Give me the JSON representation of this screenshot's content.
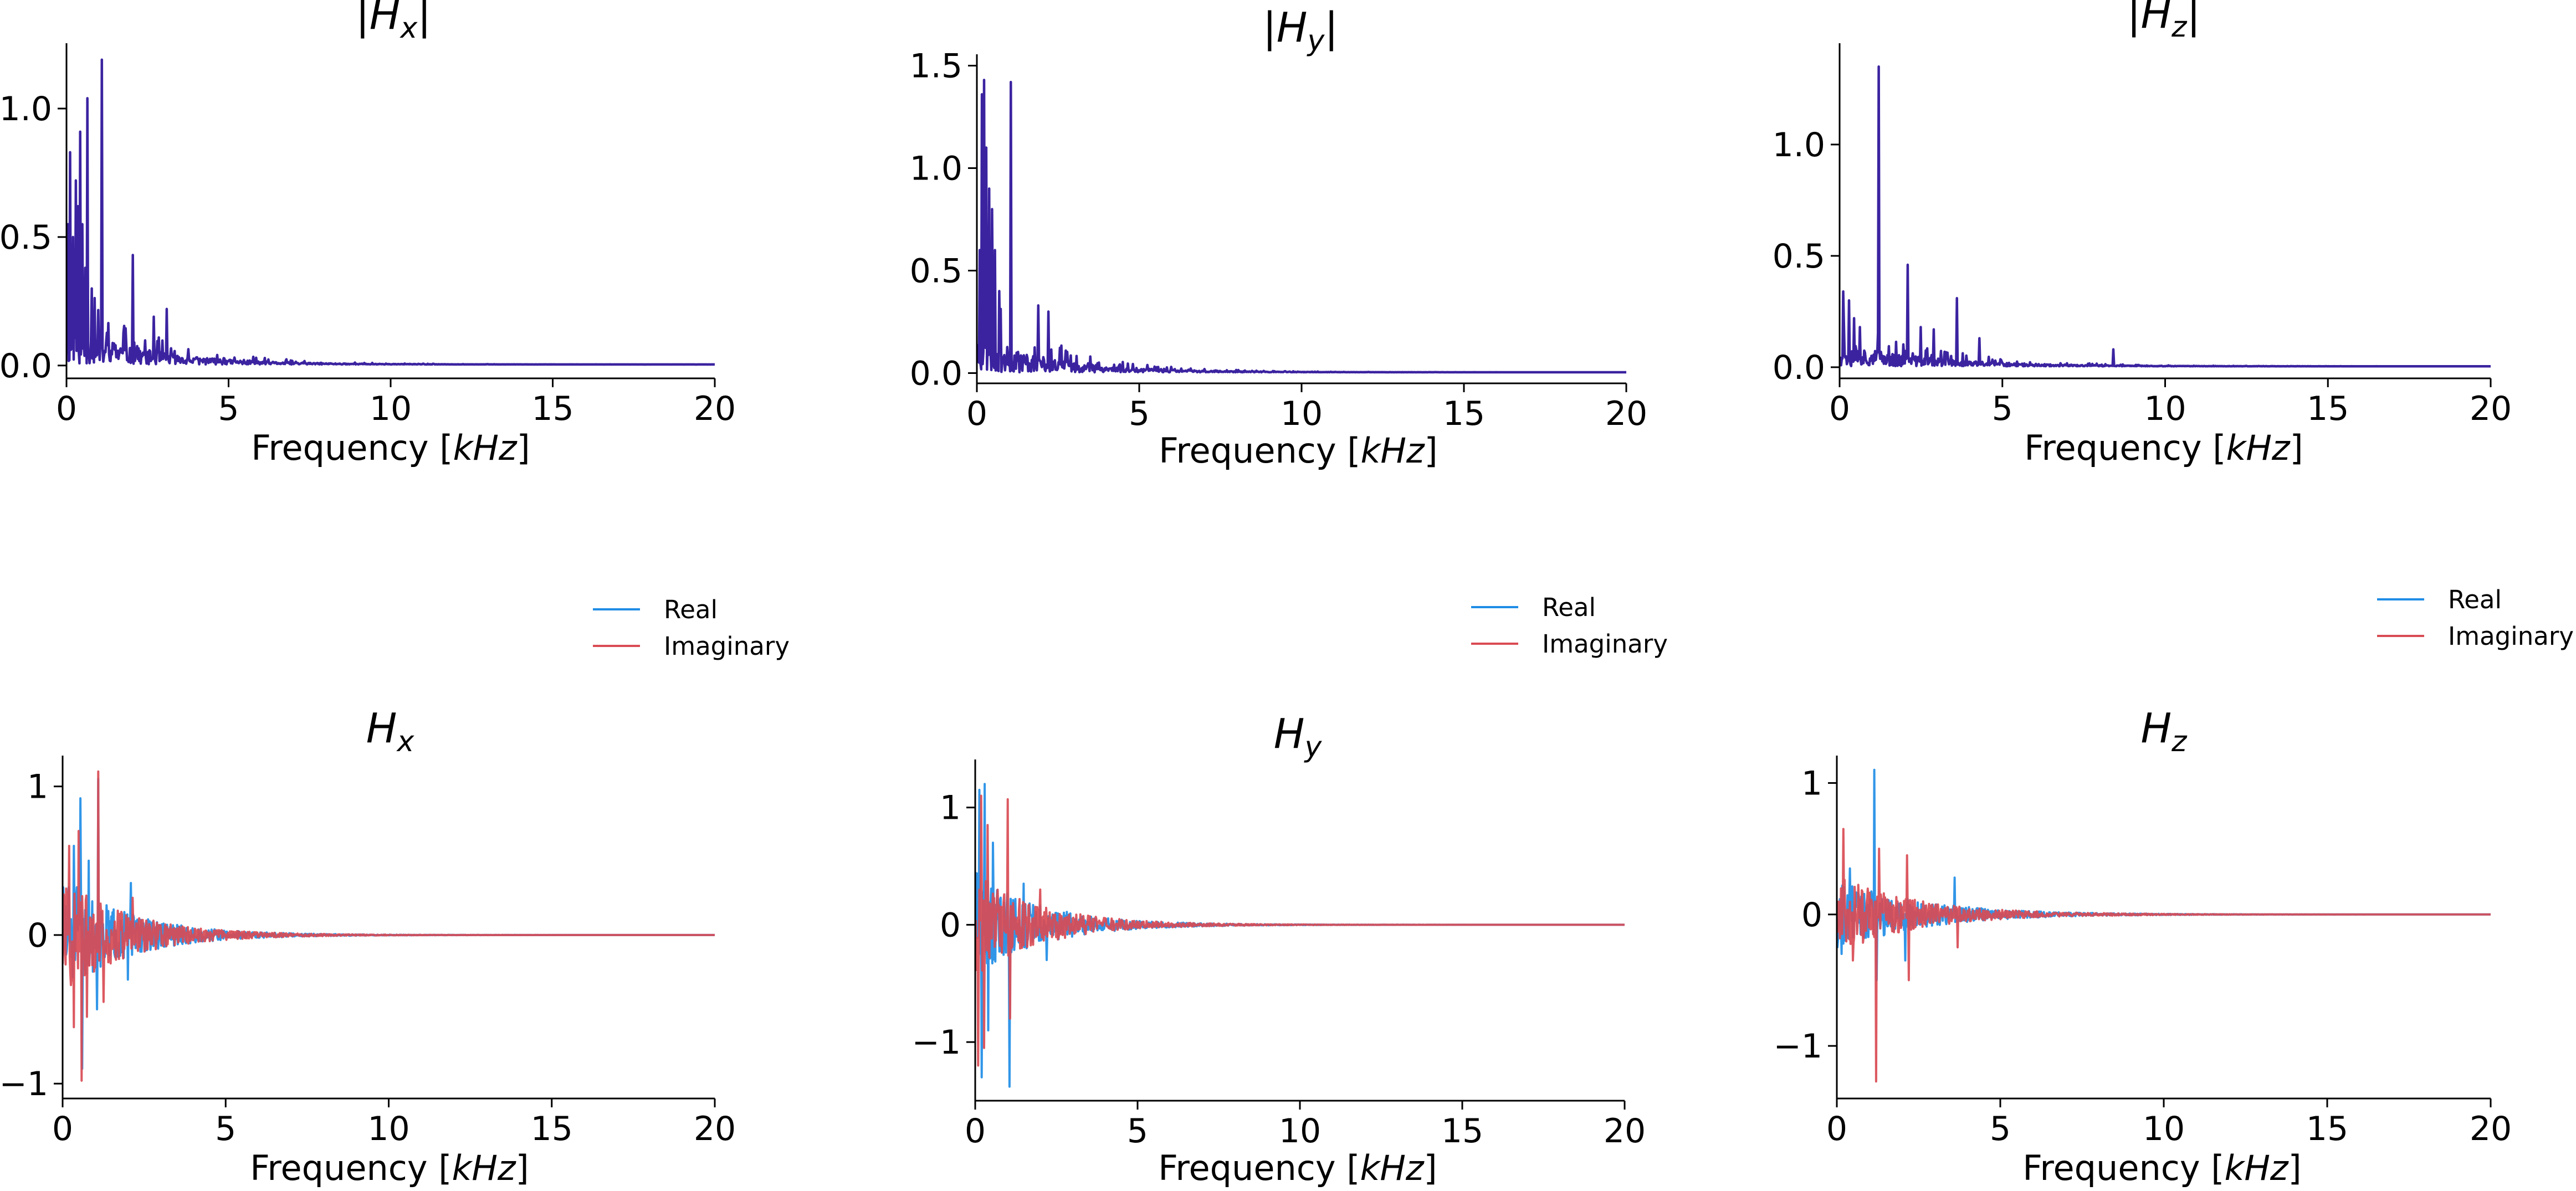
{
  "figure": {
    "colors": {
      "magnitude": "#3b23a0",
      "real": "#1f8de6",
      "imaginary": "#d94b54",
      "axis": "#000000"
    }
  },
  "chart_data": [
    {
      "id": "mag-x",
      "type": "line",
      "title": "|Hx|",
      "title_parts": {
        "bar": "|",
        "base": "H",
        "sub": "x"
      },
      "xlabel": "Frequency [kHz]",
      "xlabel_parts": {
        "prefix": "Frequency [",
        "unit": "kHz",
        "suffix": "]"
      },
      "ylabel": "",
      "xlim": [
        0,
        20
      ],
      "ylim": [
        -0.05,
        1.25
      ],
      "xticks": [
        0,
        5,
        10,
        15,
        20
      ],
      "xtick_labels": [
        "0",
        "5",
        "10",
        "15",
        "20"
      ],
      "yticks": [
        0.0,
        0.5,
        1.0
      ],
      "ytick_labels": [
        "0.0",
        "0.5",
        "1.0"
      ],
      "legend": null,
      "series": [
        {
          "name": "|Hx|",
          "color_key": "magnitude",
          "x_range": [
            0,
            20
          ],
          "n_points": 900,
          "seed": 11,
          "decay_khz": 2.3,
          "noise_amp": 0.24,
          "floor": 0.004,
          "signed": false,
          "peaks": [
            [
              0.05,
              0.55
            ],
            [
              0.12,
              0.83
            ],
            [
              0.2,
              0.5
            ],
            [
              0.28,
              0.72
            ],
            [
              0.36,
              0.62
            ],
            [
              0.42,
              0.91
            ],
            [
              0.5,
              0.55
            ],
            [
              0.58,
              0.38
            ],
            [
              0.65,
              1.04
            ],
            [
              0.78,
              0.3
            ],
            [
              1.1,
              1.19
            ],
            [
              2.05,
              0.43
            ],
            [
              2.7,
              0.19
            ],
            [
              3.1,
              0.22
            ]
          ]
        }
      ]
    },
    {
      "id": "mag-y",
      "type": "line",
      "title": "|Hy|",
      "title_parts": {
        "bar": "|",
        "base": "H",
        "sub": "y"
      },
      "xlabel": "Frequency [kHz]",
      "xlabel_parts": {
        "prefix": "Frequency [",
        "unit": "kHz",
        "suffix": "]"
      },
      "ylabel": "",
      "xlim": [
        0,
        20
      ],
      "ylim": [
        -0.05,
        1.55
      ],
      "xticks": [
        0,
        5,
        10,
        15,
        20
      ],
      "xtick_labels": [
        "0",
        "5",
        "10",
        "15",
        "20"
      ],
      "yticks": [
        0.0,
        0.5,
        1.0,
        1.5
      ],
      "ytick_labels": [
        "0.0",
        "0.5",
        "1.0",
        "1.5"
      ],
      "legend": null,
      "series": [
        {
          "name": "|Hy|",
          "color_key": "magnitude",
          "x_range": [
            0,
            20
          ],
          "n_points": 900,
          "seed": 23,
          "decay_khz": 2.2,
          "noise_amp": 0.27,
          "floor": 0.004,
          "signed": false,
          "peaks": [
            [
              0.08,
              0.6
            ],
            [
              0.15,
              1.36
            ],
            [
              0.22,
              1.43
            ],
            [
              0.3,
              1.1
            ],
            [
              0.38,
              0.9
            ],
            [
              0.46,
              0.8
            ],
            [
              0.55,
              0.6
            ],
            [
              0.7,
              0.4
            ],
            [
              1.05,
              1.42
            ],
            [
              1.9,
              0.33
            ],
            [
              2.2,
              0.3
            ]
          ]
        }
      ]
    },
    {
      "id": "mag-z",
      "type": "line",
      "title": "|Hz|",
      "title_parts": {
        "bar": "|",
        "base": "H",
        "sub": "z"
      },
      "xlabel": "Frequency [kHz]",
      "xlabel_parts": {
        "prefix": "Frequency [",
        "unit": "kHz",
        "suffix": "]"
      },
      "ylabel": "",
      "xlim": [
        0,
        20
      ],
      "ylim": [
        -0.05,
        1.45
      ],
      "xticks": [
        0,
        5,
        10,
        15,
        20
      ],
      "xtick_labels": [
        "0",
        "5",
        "10",
        "15",
        "20"
      ],
      "yticks": [
        0.0,
        0.5,
        1.0
      ],
      "ytick_labels": [
        "0.0",
        "0.5",
        "1.0"
      ],
      "legend": null,
      "series": [
        {
          "name": "|Hz|",
          "color_key": "magnitude",
          "x_range": [
            0,
            20
          ],
          "n_points": 900,
          "seed": 37,
          "decay_khz": 2.6,
          "noise_amp": 0.16,
          "floor": 0.004,
          "signed": false,
          "peaks": [
            [
              0.12,
              0.34
            ],
            [
              0.28,
              0.3
            ],
            [
              0.45,
              0.22
            ],
            [
              0.62,
              0.18
            ],
            [
              1.2,
              1.35
            ],
            [
              2.1,
              0.46
            ],
            [
              2.5,
              0.18
            ],
            [
              2.9,
              0.17
            ],
            [
              3.6,
              0.31
            ],
            [
              4.3,
              0.13
            ],
            [
              8.4,
              0.08
            ]
          ]
        }
      ]
    },
    {
      "id": "cplx-x",
      "type": "line",
      "title": "Hx",
      "title_parts": {
        "bar": "",
        "base": "H",
        "sub": "x"
      },
      "xlabel": "Frequency [kHz]",
      "xlabel_parts": {
        "prefix": "Frequency [",
        "unit": "kHz",
        "suffix": "]"
      },
      "ylabel": "",
      "xlim": [
        0,
        20
      ],
      "ylim": [
        -1.1,
        1.2
      ],
      "xticks": [
        0,
        5,
        10,
        15,
        20
      ],
      "xtick_labels": [
        "0",
        "5",
        "10",
        "15",
        "20"
      ],
      "yticks": [
        -1,
        0,
        1
      ],
      "ytick_labels": [
        "−1",
        "0",
        "1"
      ],
      "legend": {
        "placement": "upper-right",
        "entries": [
          "Real",
          "Imaginary"
        ]
      },
      "series": [
        {
          "name": "Real",
          "color_key": "real",
          "x_range": [
            0,
            20
          ],
          "n_points": 1100,
          "seed": 51,
          "decay_khz": 2.0,
          "noise_amp": 0.4,
          "floor": 0.0,
          "signed": true,
          "peaks": [
            [
              0.35,
              0.6
            ],
            [
              0.55,
              0.92
            ],
            [
              0.6,
              -0.9
            ],
            [
              0.8,
              0.5
            ],
            [
              1.05,
              -0.5
            ],
            [
              1.1,
              1.05
            ],
            [
              2.0,
              -0.3
            ],
            [
              2.1,
              0.35
            ]
          ]
        },
        {
          "name": "Imaginary",
          "color_key": "imaginary",
          "x_range": [
            0,
            20
          ],
          "n_points": 1100,
          "seed": 57,
          "decay_khz": 2.0,
          "noise_amp": 0.4,
          "floor": 0.0,
          "signed": true,
          "peaks": [
            [
              0.2,
              0.6
            ],
            [
              0.35,
              -0.62
            ],
            [
              0.5,
              0.7
            ],
            [
              0.58,
              -0.98
            ],
            [
              0.75,
              -0.55
            ],
            [
              1.1,
              1.1
            ],
            [
              1.25,
              -0.45
            ],
            [
              2.15,
              0.25
            ]
          ]
        }
      ]
    },
    {
      "id": "cplx-y",
      "type": "line",
      "title": "Hy",
      "title_parts": {
        "bar": "",
        "base": "H",
        "sub": "y"
      },
      "xlabel": "Frequency [kHz]",
      "xlabel_parts": {
        "prefix": "Frequency [",
        "unit": "kHz",
        "suffix": "]"
      },
      "ylabel": "",
      "xlim": [
        0,
        20
      ],
      "ylim": [
        -1.5,
        1.4
      ],
      "xticks": [
        0,
        5,
        10,
        15,
        20
      ],
      "xtick_labels": [
        "0",
        "5",
        "10",
        "15",
        "20"
      ],
      "yticks": [
        -1,
        0,
        1
      ],
      "ytick_labels": [
        "−1",
        "0",
        "1"
      ],
      "legend": {
        "placement": "upper-right",
        "entries": [
          "Real",
          "Imaginary"
        ]
      },
      "series": [
        {
          "name": "Real",
          "color_key": "real",
          "x_range": [
            0,
            20
          ],
          "n_points": 1100,
          "seed": 63,
          "decay_khz": 2.0,
          "noise_amp": 0.45,
          "floor": 0.0,
          "signed": true,
          "peaks": [
            [
              0.12,
              1.15
            ],
            [
              0.2,
              -1.3
            ],
            [
              0.3,
              1.2
            ],
            [
              0.4,
              -0.9
            ],
            [
              0.55,
              0.7
            ],
            [
              1.05,
              -1.38
            ],
            [
              1.5,
              0.35
            ],
            [
              2.2,
              -0.3
            ]
          ]
        },
        {
          "name": "Imaginary",
          "color_key": "imaginary",
          "x_range": [
            0,
            20
          ],
          "n_points": 1100,
          "seed": 69,
          "decay_khz": 2.0,
          "noise_amp": 0.45,
          "floor": 0.0,
          "signed": true,
          "peaks": [
            [
              0.1,
              -1.2
            ],
            [
              0.18,
              1.1
            ],
            [
              0.28,
              -1.05
            ],
            [
              0.38,
              0.85
            ],
            [
              1.0,
              1.07
            ],
            [
              1.08,
              -0.8
            ],
            [
              2.0,
              0.3
            ]
          ]
        }
      ]
    },
    {
      "id": "cplx-z",
      "type": "line",
      "title": "Hz",
      "title_parts": {
        "bar": "",
        "base": "H",
        "sub": "z"
      },
      "xlabel": "Frequency [kHz]",
      "xlabel_parts": {
        "prefix": "Frequency [",
        "unit": "kHz",
        "suffix": "]"
      },
      "ylabel": "",
      "xlim": [
        0,
        20
      ],
      "ylim": [
        -1.4,
        1.2
      ],
      "xticks": [
        0,
        5,
        10,
        15,
        20
      ],
      "xtick_labels": [
        "0",
        "5",
        "10",
        "15",
        "20"
      ],
      "yticks": [
        -1,
        0,
        1
      ],
      "ytick_labels": [
        "−1",
        "0",
        "1"
      ],
      "legend": {
        "placement": "upper-right",
        "entries": [
          "Real",
          "Imaginary"
        ]
      },
      "series": [
        {
          "name": "Real",
          "color_key": "real",
          "x_range": [
            0,
            20
          ],
          "n_points": 1100,
          "seed": 75,
          "decay_khz": 2.4,
          "noise_amp": 0.3,
          "floor": 0.0,
          "signed": true,
          "peaks": [
            [
              0.15,
              -0.3
            ],
            [
              0.4,
              0.35
            ],
            [
              1.15,
              1.1
            ],
            [
              1.22,
              -0.5
            ],
            [
              2.1,
              -0.35
            ],
            [
              3.6,
              0.28
            ]
          ]
        },
        {
          "name": "Imaginary",
          "color_key": "imaginary",
          "x_range": [
            0,
            20
          ],
          "n_points": 1100,
          "seed": 81,
          "decay_khz": 2.4,
          "noise_amp": 0.3,
          "floor": 0.0,
          "signed": true,
          "peaks": [
            [
              0.2,
              0.65
            ],
            [
              0.5,
              -0.35
            ],
            [
              1.2,
              -1.27
            ],
            [
              1.3,
              0.5
            ],
            [
              2.15,
              0.45
            ],
            [
              2.2,
              -0.5
            ],
            [
              3.7,
              -0.25
            ]
          ]
        }
      ]
    }
  ]
}
